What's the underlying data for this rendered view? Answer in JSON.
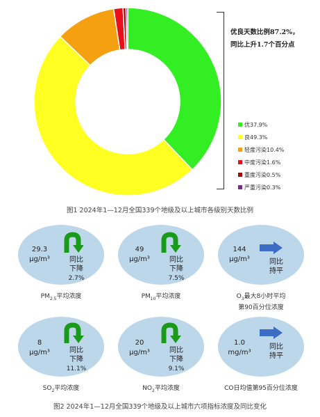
{
  "chart_data": {
    "type": "pie",
    "categories": [
      "优",
      "良",
      "轻度污染",
      "中度污染",
      "重度污染",
      "严重污染"
    ],
    "values": [
      37.9,
      49.3,
      10.4,
      1.6,
      0.5,
      0.3
    ],
    "colors": [
      "#33ee22",
      "#ffff22",
      "#f5a011",
      "#e8101b",
      "#9c0a0a",
      "#7a2a8c"
    ],
    "legend": [
      "优37.9%",
      "良49.3%",
      "轻度污染10.4%",
      "中度污染1.6%",
      "重度污染0.5%",
      "严重污染0.3%"
    ],
    "legend_position": "right"
  },
  "summary": {
    "line1": "优良天数比例87.2%，",
    "line2": "同比上升1.7个百分点"
  },
  "caption1": "图1  2024年1—12月全国339个地级及以上城市各级别天数比例",
  "caption2": "图2  2024年1—12月全国339个地级及以上城市六项指标浓度及同比变化",
  "pollutants": {
    "pm25": {
      "value": "29.3",
      "unit": "μg/m³",
      "change1": "同比",
      "change2": "下降",
      "pct": "2.7%",
      "label_pre": "PM",
      "label_sub": "2.5",
      "label_post": "平均浓度",
      "trend": "down"
    },
    "pm10": {
      "value": "49",
      "unit": "μg/m³",
      "change1": "同比",
      "change2": "下降",
      "pct": "7.5%",
      "label_pre": "PM",
      "label_sub": "10",
      "label_post": "平均浓度",
      "trend": "down"
    },
    "o3": {
      "value": "144",
      "unit": "μg/m³",
      "change1": "同比",
      "change2": "持平",
      "pct": "",
      "label_pre": "O",
      "label_sub": "3",
      "label_post": "最大8小时平均",
      "label_line2": "第90百分位浓度",
      "trend": "flat"
    },
    "so2": {
      "value": "8",
      "unit": "μg/m³",
      "change1": "同比",
      "change2": "下降",
      "pct": "11.1%",
      "label_pre": "SO",
      "label_sub": "2",
      "label_post": "平均浓度",
      "trend": "down"
    },
    "no2": {
      "value": "20",
      "unit": "μg/m³",
      "change1": "同比",
      "change2": "下降",
      "pct": "9.1%",
      "label_pre": "NO",
      "label_sub": "2",
      "label_post": "平均浓度",
      "trend": "down"
    },
    "co": {
      "value": "1.0",
      "unit": "mg/m³",
      "change1": "同比",
      "change2": "持平",
      "pct": "",
      "label_pre": "CO日均值第95百分位浓度",
      "label_sub": "",
      "label_post": "",
      "trend": "flat"
    }
  }
}
